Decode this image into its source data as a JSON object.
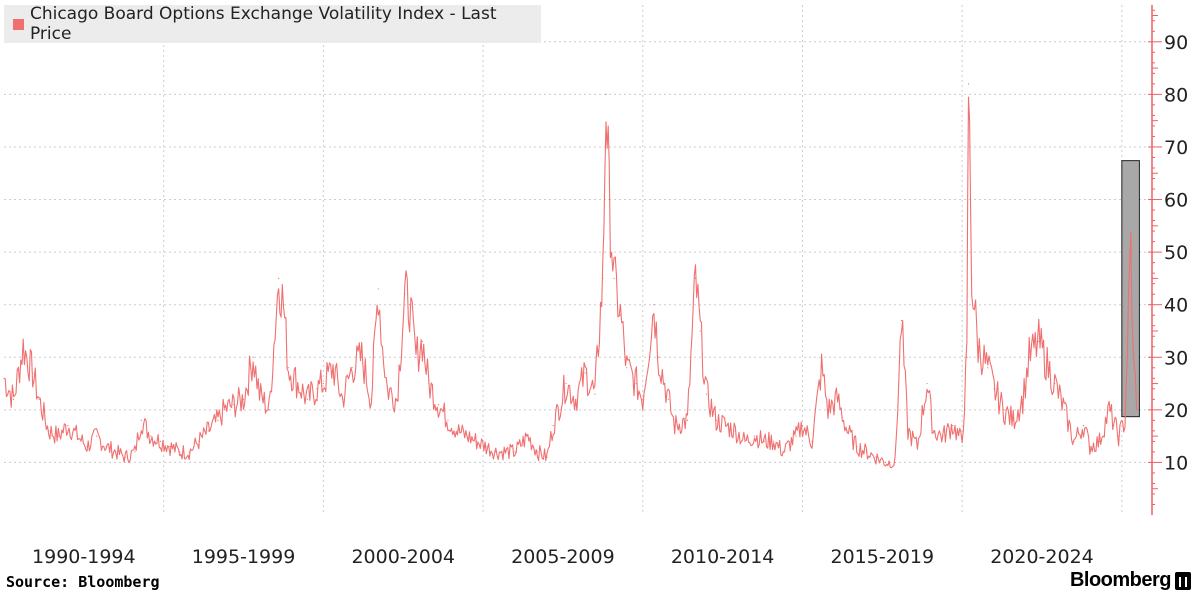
{
  "legend": {
    "label": "Chicago Board Options Exchange Volatility Index - Last Price"
  },
  "source": "Source: Bloomberg",
  "brand": {
    "name": "Bloomberg",
    "icon": "bloomberg-terminal-icon"
  },
  "colors": {
    "series": "#f07070",
    "axis": "#f06060",
    "grid": "#cccccc",
    "highlight": "#a8a8a8"
  },
  "chart_data": {
    "type": "line",
    "title": "",
    "xlabel": "",
    "ylabel": "",
    "ylim": [
      0,
      97
    ],
    "yticks": [
      10,
      20,
      30,
      40,
      50,
      60,
      70,
      80,
      90
    ],
    "y_axis_side": "right",
    "grid": true,
    "legend_position": "top-left",
    "x_tick_labels": [
      "1990-1994",
      "1995-1999",
      "2000-2004",
      "2005-2009",
      "2010-2014",
      "2015-2019",
      "2020-2024"
    ],
    "x_range": [
      1990.0,
      2025.6
    ],
    "highlight_band": {
      "x": [
        2025.0,
        2025.55
      ],
      "y": [
        18.7,
        67.4
      ]
    },
    "series": [
      {
        "points": [
          [
            1990.0,
            26
          ],
          [
            1990.3,
            22
          ],
          [
            1990.6,
            32
          ],
          [
            1990.9,
            27
          ],
          [
            1991.1,
            22
          ],
          [
            1991.4,
            16
          ],
          [
            1991.7,
            15
          ],
          [
            1992.0,
            17
          ],
          [
            1992.3,
            15
          ],
          [
            1992.6,
            13
          ],
          [
            1992.9,
            15
          ],
          [
            1993.2,
            13
          ],
          [
            1993.5,
            12
          ],
          [
            1993.8,
            11
          ],
          [
            1994.1,
            12
          ],
          [
            1994.3,
            18
          ],
          [
            1994.6,
            15
          ],
          [
            1994.9,
            14
          ],
          [
            1995.2,
            13
          ],
          [
            1995.5,
            12
          ],
          [
            1995.8,
            12
          ],
          [
            1996.1,
            14
          ],
          [
            1996.4,
            16
          ],
          [
            1996.7,
            18
          ],
          [
            1996.9,
            20
          ],
          [
            1997.2,
            21
          ],
          [
            1997.5,
            22
          ],
          [
            1997.8,
            30
          ],
          [
            1998.0,
            23
          ],
          [
            1998.3,
            20
          ],
          [
            1998.6,
            45
          ],
          [
            1998.75,
            40
          ],
          [
            1998.9,
            28
          ],
          [
            1999.2,
            25
          ],
          [
            1999.5,
            22
          ],
          [
            1999.8,
            24
          ],
          [
            2000.0,
            25
          ],
          [
            2000.3,
            28
          ],
          [
            2000.6,
            22
          ],
          [
            2000.9,
            28
          ],
          [
            2001.2,
            30
          ],
          [
            2001.5,
            22
          ],
          [
            2001.72,
            43
          ],
          [
            2001.85,
            32
          ],
          [
            2002.0,
            24
          ],
          [
            2002.3,
            22
          ],
          [
            2002.55,
            42
          ],
          [
            2002.7,
            40
          ],
          [
            2002.9,
            30
          ],
          [
            2003.1,
            33
          ],
          [
            2003.3,
            25
          ],
          [
            2003.6,
            21
          ],
          [
            2003.9,
            18
          ],
          [
            2004.2,
            16
          ],
          [
            2004.5,
            15
          ],
          [
            2004.8,
            14
          ],
          [
            2005.1,
            13
          ],
          [
            2005.4,
            12
          ],
          [
            2005.7,
            12
          ],
          [
            2006.0,
            12
          ],
          [
            2006.4,
            15
          ],
          [
            2006.7,
            12
          ],
          [
            2007.0,
            11
          ],
          [
            2007.2,
            17
          ],
          [
            2007.6,
            25
          ],
          [
            2007.9,
            22
          ],
          [
            2008.2,
            27
          ],
          [
            2008.5,
            23
          ],
          [
            2008.75,
            45
          ],
          [
            2008.85,
            80
          ],
          [
            2008.95,
            60
          ],
          [
            2009.1,
            45
          ],
          [
            2009.3,
            38
          ],
          [
            2009.5,
            28
          ],
          [
            2009.8,
            25
          ],
          [
            2010.0,
            22
          ],
          [
            2010.35,
            40
          ],
          [
            2010.5,
            30
          ],
          [
            2010.8,
            22
          ],
          [
            2011.0,
            17
          ],
          [
            2011.4,
            18
          ],
          [
            2011.65,
            45
          ],
          [
            2011.8,
            35
          ],
          [
            2012.0,
            23
          ],
          [
            2012.3,
            18
          ],
          [
            2012.6,
            17
          ],
          [
            2012.9,
            16
          ],
          [
            2013.2,
            14
          ],
          [
            2013.5,
            15
          ],
          [
            2013.8,
            14
          ],
          [
            2014.1,
            14
          ],
          [
            2014.4,
            12
          ],
          [
            2014.8,
            15
          ],
          [
            2015.0,
            17
          ],
          [
            2015.3,
            14
          ],
          [
            2015.6,
            28
          ],
          [
            2015.8,
            20
          ],
          [
            2016.1,
            22
          ],
          [
            2016.4,
            16
          ],
          [
            2016.7,
            13
          ],
          [
            2017.0,
            12
          ],
          [
            2017.3,
            11
          ],
          [
            2017.6,
            10
          ],
          [
            2017.9,
            10
          ],
          [
            2018.1,
            37
          ],
          [
            2018.3,
            16
          ],
          [
            2018.6,
            13
          ],
          [
            2018.9,
            25
          ],
          [
            2019.1,
            16
          ],
          [
            2019.4,
            15
          ],
          [
            2019.7,
            17
          ],
          [
            2020.0,
            14
          ],
          [
            2020.15,
            30
          ],
          [
            2020.2,
            82
          ],
          [
            2020.3,
            45
          ],
          [
            2020.5,
            32
          ],
          [
            2020.8,
            28
          ],
          [
            2021.0,
            24
          ],
          [
            2021.3,
            20
          ],
          [
            2021.6,
            18
          ],
          [
            2021.9,
            22
          ],
          [
            2022.1,
            30
          ],
          [
            2022.4,
            33
          ],
          [
            2022.7,
            28
          ],
          [
            2022.9,
            25
          ],
          [
            2023.2,
            20
          ],
          [
            2023.5,
            14
          ],
          [
            2023.8,
            17
          ],
          [
            2024.0,
            13
          ],
          [
            2024.3,
            14
          ],
          [
            2024.6,
            20
          ],
          [
            2024.9,
            15
          ],
          [
            2025.1,
            18
          ],
          [
            2025.28,
            52
          ],
          [
            2025.35,
            30
          ],
          [
            2025.5,
            20
          ]
        ]
      }
    ]
  }
}
